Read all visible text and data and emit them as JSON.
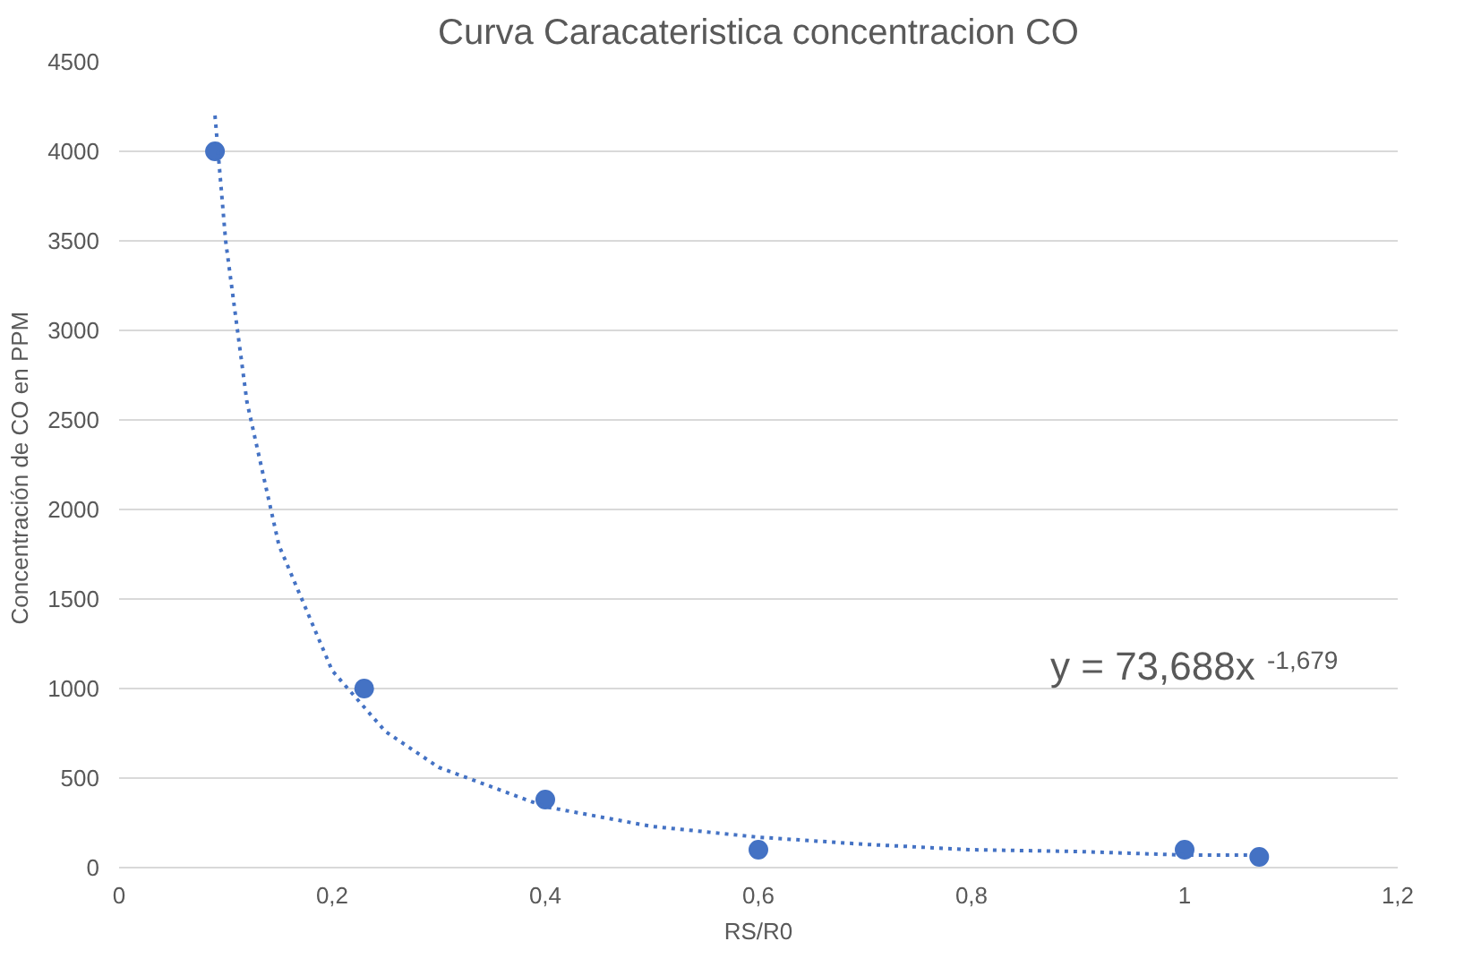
{
  "chart_data": {
    "type": "scatter",
    "title": "Curva Caracateristica concentracion CO",
    "xlabel": "RS/R0",
    "ylabel": "Concentración de  CO en PPM",
    "series": [
      {
        "color": "#4472c4",
        "marker": "circle",
        "x": [
          0.09,
          0.23,
          0.4,
          0.6,
          1.0,
          1.07
        ],
        "values": [
          4000,
          1000,
          380,
          100,
          100,
          60
        ]
      },
      {
        "type": "line",
        "color": "#4472c4",
        "line_style": "dotted",
        "x": [
          0.09,
          0.1,
          0.12,
          0.15,
          0.2,
          0.25,
          0.3,
          0.4,
          0.5,
          0.6,
          0.7,
          0.8,
          0.9,
          1.0,
          1.07
        ],
        "values": [
          4200,
          3500,
          2600,
          1800,
          1100,
          760,
          560,
          340,
          230,
          170,
          130,
          100,
          90,
          70,
          70
        ]
      }
    ],
    "annotations": [
      "y = 73,688x$^{-1,679}$"
    ],
    "xlim": [
      0,
      1.2
    ],
    "xticks": [
      {
        "value": 0,
        "label": "0"
      },
      {
        "value": 0.2,
        "label": "0,2"
      },
      {
        "value": 0.4,
        "label": "0,4"
      },
      {
        "value": 0.6,
        "label": "0,6"
      },
      {
        "value": 0.8,
        "label": "0,8"
      },
      {
        "value": 1,
        "label": "1"
      },
      {
        "value": 1.2,
        "label": "1,2"
      }
    ],
    "ylim": [
      0,
      4500
    ],
    "yticks": [
      0,
      500,
      1000,
      1500,
      2000,
      2500,
      3000,
      3500,
      4000,
      4500
    ],
    "grid": "y"
  }
}
